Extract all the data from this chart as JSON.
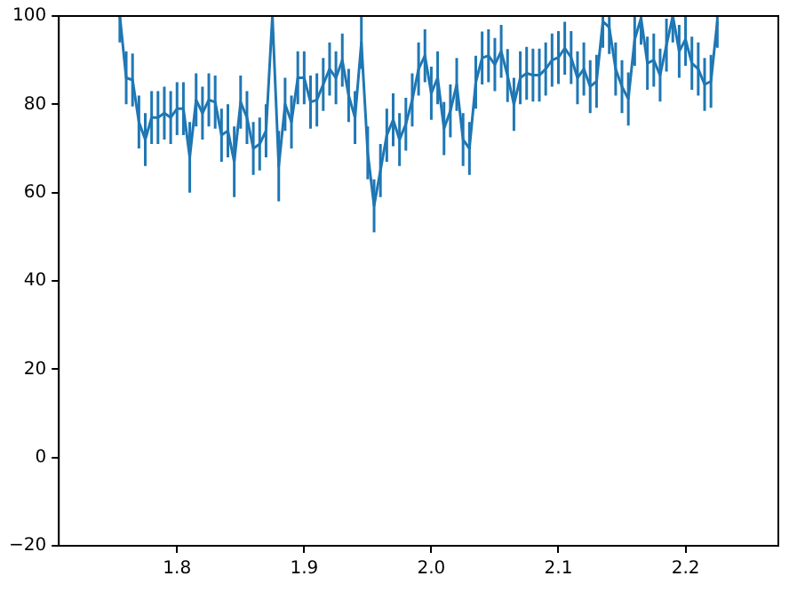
{
  "chart_data": {
    "type": "line",
    "xlim": [
      1.707,
      2.273
    ],
    "xticks": [
      1.8,
      1.9,
      {
        "value": 2,
        "label": "2.0"
      },
      2.1,
      2.2
    ],
    "ylim": [
      -20,
      100
    ],
    "yticks": [
      {
        "value": -20,
        "label": "−20"
      },
      0,
      20,
      40,
      60,
      80,
      100
    ],
    "grid": false,
    "series": [
      {
        "color": "#1f77b4",
        "x": [
          1.755,
          1.76,
          1.765,
          1.77,
          1.775,
          1.78,
          1.785,
          1.79,
          1.795,
          1.8,
          1.805,
          1.81,
          1.815,
          1.82,
          1.825,
          1.83,
          1.835,
          1.84,
          1.845,
          1.85,
          1.855,
          1.86,
          1.865,
          1.87,
          1.875,
          1.88,
          1.885,
          1.89,
          1.895,
          1.9,
          1.905,
          1.91,
          1.915,
          1.92,
          1.925,
          1.93,
          1.935,
          1.94,
          1.945,
          1.95,
          1.955,
          1.96,
          1.965,
          1.97,
          1.975,
          1.98,
          1.985,
          1.99,
          1.995,
          2.0,
          2.005,
          2.01,
          2.015,
          2.02,
          2.025,
          2.03,
          2.035,
          2.04,
          2.045,
          2.05,
          2.055,
          2.06,
          2.065,
          2.07,
          2.075,
          2.08,
          2.085,
          2.09,
          2.095,
          2.1,
          2.105,
          2.11,
          2.115,
          2.12,
          2.125,
          2.13,
          2.135,
          2.14,
          2.145,
          2.15,
          2.155,
          2.16,
          2.165,
          2.17,
          2.175,
          2.18,
          2.185,
          2.19,
          2.195,
          2.2,
          2.205,
          2.21,
          2.215,
          2.22,
          2.225
        ],
        "values": [
          100,
          86,
          85.5,
          76,
          72,
          77,
          77,
          78,
          77,
          79,
          79,
          68,
          81,
          78,
          81,
          80.5,
          73,
          74,
          67,
          80.5,
          77,
          70,
          71,
          74,
          100,
          66,
          80,
          76,
          86,
          86,
          80.5,
          81,
          84.5,
          88,
          86,
          90,
          82,
          77,
          94,
          69,
          57,
          65,
          73,
          76.5,
          72,
          75.5,
          81,
          88,
          91,
          82.5,
          86,
          74.5,
          78.5,
          84.5,
          72,
          70,
          85,
          90.5,
          91,
          89,
          92,
          86.5,
          80,
          86,
          87,
          86.6,
          86.6,
          88,
          90,
          90.6,
          92.7,
          90.6,
          86,
          88,
          84,
          85.2,
          98.8,
          97.4,
          88,
          84,
          81.2,
          94.7,
          99.5,
          89.3,
          90,
          86.6,
          93.4,
          100,
          92,
          94.7,
          89.3,
          88,
          84.5,
          85.2,
          98.8
        ],
        "errors": [
          [
            94,
            100
          ],
          6,
          6,
          6,
          6,
          6,
          6,
          6,
          6,
          6,
          6,
          8,
          6,
          6,
          6,
          6,
          6,
          6,
          8,
          6,
          6,
          6,
          6,
          6,
          [
            94,
            100
          ],
          8,
          6,
          6,
          6,
          6,
          6,
          6,
          6,
          6,
          6,
          6,
          6,
          6,
          [
            88,
            100
          ],
          6,
          6,
          6,
          6,
          6,
          6,
          6,
          6,
          6,
          6,
          6,
          6,
          6,
          6,
          6,
          6,
          6,
          6,
          6,
          6,
          6,
          6,
          6,
          6,
          6,
          6,
          6,
          6,
          6,
          6,
          6,
          6,
          6,
          6,
          6,
          6,
          6,
          [
            92.8,
            100
          ],
          [
            91.4,
            100
          ],
          6,
          6,
          6,
          [
            88.7,
            100
          ],
          [
            93.5,
            100
          ],
          6,
          6,
          6,
          6,
          [
            94,
            100
          ],
          6,
          [
            88.7,
            100
          ],
          6,
          6,
          6,
          6,
          [
            92.8,
            100
          ]
        ]
      }
    ]
  }
}
